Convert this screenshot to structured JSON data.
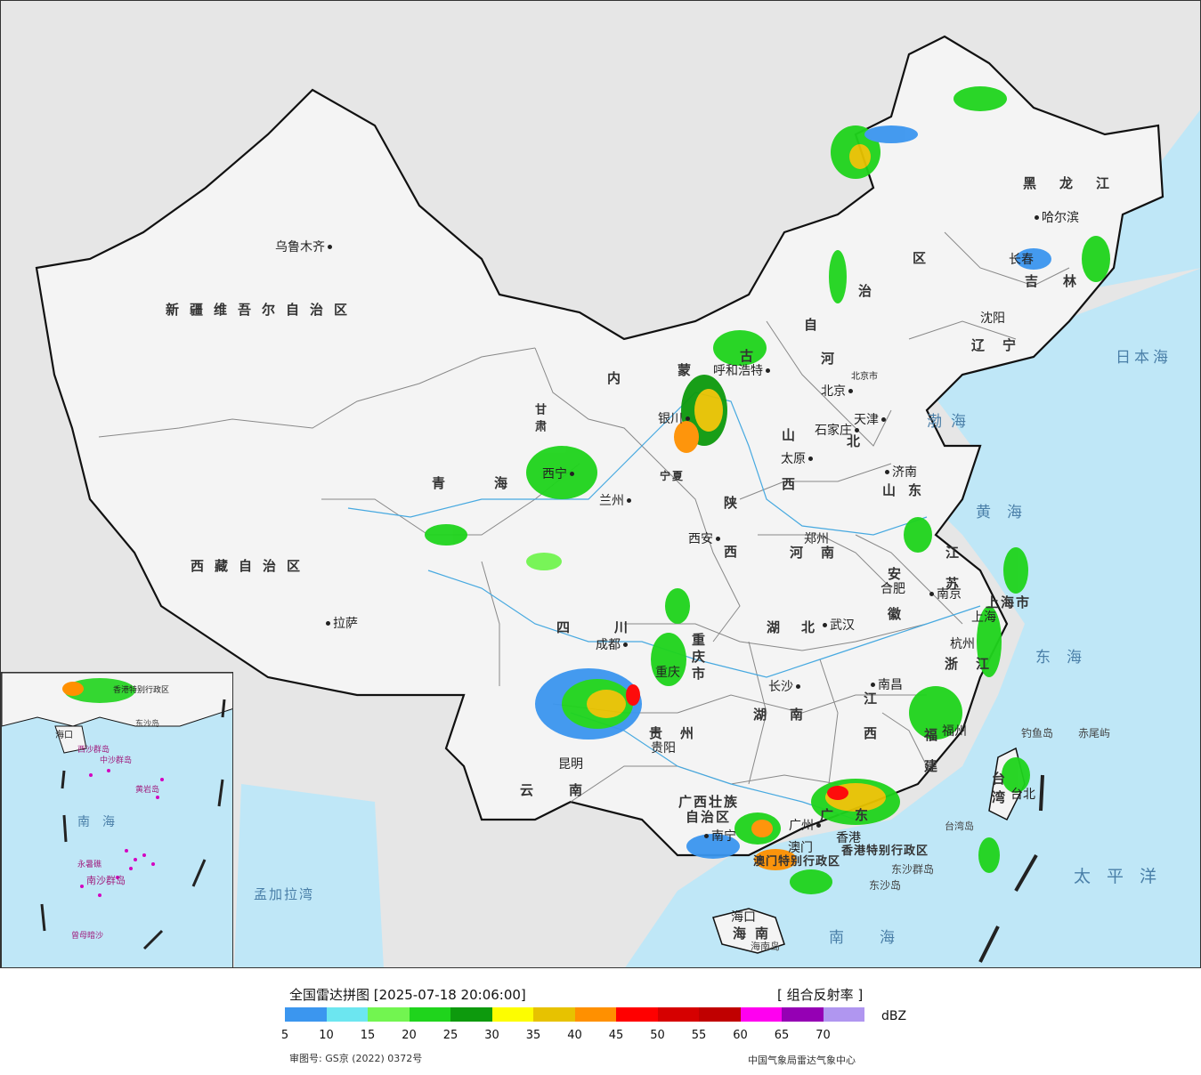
{
  "title": "全国雷达拼图 [2025-07-18 20:06:00]",
  "product": "[ 组合反射率 ]",
  "unit": "dBZ",
  "review_number": "审图号: GS京 (2022) 0372号",
  "credit": "中国气象局雷达气象中心",
  "legend": {
    "colors": [
      "#3b96ef",
      "#6ce6f0",
      "#72f550",
      "#1fd41c",
      "#0d9a0d",
      "#fdfd00",
      "#e7c200",
      "#ff9000",
      "#ff0000",
      "#d60000",
      "#c00000",
      "#ff00f0",
      "#9500b4",
      "#b096f0"
    ],
    "ticks": [
      "5",
      "10",
      "15",
      "20",
      "25",
      "30",
      "35",
      "40",
      "45",
      "50",
      "55",
      "60",
      "65",
      "70"
    ]
  },
  "regions": {
    "xinjiang": "新疆维吾尔自治区",
    "xizang": "西藏自治区",
    "qinghai": "青海",
    "gansu": "甘肃",
    "neimenggu_1": "内",
    "neimenggu_2": "蒙",
    "neimenggu_3": "古",
    "neimenggu_4": "自",
    "neimenggu_5": "治",
    "neimenggu_6": "区",
    "heilongjiang": "黑龙江",
    "jilin": "吉林",
    "liaoning": "辽宁",
    "hebei_1": "河",
    "hebei_2": "北",
    "shanxi": "山西",
    "shaanxi": "陕西",
    "henan": "河南",
    "shandong": "山东",
    "jiangsu": "江苏",
    "anhui": "安徽",
    "hubei": "湖北",
    "sichuan": "四川",
    "chongqing": "重庆市",
    "guizhou": "贵州",
    "yunnan": "云南",
    "hunan": "湖南",
    "jiangxi": "江西",
    "zhejiang": "浙江",
    "fujian": "福建",
    "guangxi_1": "广西壮族",
    "guangxi_2": "自治区",
    "guangdong": "广东",
    "hainan": "海南",
    "taiwan": "台湾",
    "ningxia": "宁夏",
    "shanghai": "上海市",
    "tianjin": "天津",
    "hk": "香港特别行政区",
    "macau": "澳门特别行政区"
  },
  "cities": {
    "urumqi": "乌鲁木齐",
    "lhasa": "拉萨",
    "xining": "西宁",
    "lanzhou": "兰州",
    "yinchuan": "银川",
    "hohhot": "呼和浩特",
    "beijing": "北京",
    "tianjin": "天津",
    "shijiazhuang": "石家庄",
    "taiyuan": "太原",
    "jinan": "济南",
    "xian": "西安",
    "zhengzhou": "郑州",
    "hefei": "合肥",
    "nanjing": "南京",
    "shanghai": "上海",
    "hangzhou": "杭州",
    "wuhan": "武汉",
    "chengdu": "成都",
    "chongqing": "重庆",
    "guiyang": "贵阳",
    "kunming": "昆明",
    "changsha": "长沙",
    "nanchang": "南昌",
    "fuzhou": "福州",
    "nanning": "南宁",
    "guangzhou": "广州",
    "hongkong": "香港",
    "macao": "澳门",
    "haikou": "海口",
    "taipei": "台北",
    "harbin": "哈尔滨",
    "changchun": "长春",
    "shenyang": "沈阳",
    "beijingshi": "北京市"
  },
  "seas": {
    "bohai": "渤海",
    "huanghai": "黄海",
    "donghai": "东海",
    "nanhai": "南海",
    "taipingyang": "太平洋",
    "ribenhai": "日本海",
    "mengjiala": "孟加拉湾"
  },
  "islands": {
    "diaoyu": "钓鱼岛",
    "chiwei": "赤尾屿",
    "dongsha_1": "东沙群岛",
    "dongsha_2": "东沙岛",
    "hainan_island": "海南岛",
    "taiwan_island": "台湾岛"
  },
  "inset": {
    "nanhai": "南海",
    "zhongsha": "中沙群岛",
    "huangyan": "黄岩岛",
    "yongshu": "永暑礁",
    "nansha": "南沙群岛",
    "zengmu": "曾母暗沙",
    "haikou": "海口",
    "hk": "香港特别行政区",
    "dongsha": "东沙岛",
    "xisha": "西沙群岛"
  }
}
